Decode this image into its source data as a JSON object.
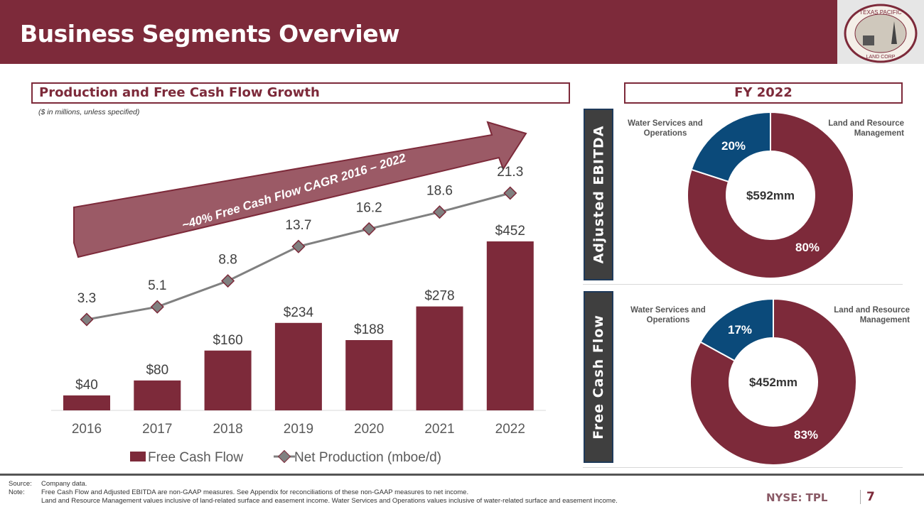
{
  "header": {
    "title": "Business Segments Overview",
    "logo_text": "TEXAS PACIFIC LAND CORP EST. 1888"
  },
  "left": {
    "section_title": "Production and Free Cash Flow Growth",
    "units_note": "($ in millions, unless specified)",
    "arrow_label": "~40% Free Cash Flow CAGR 2016 – 2022"
  },
  "chart_data": {
    "type": "bar+line",
    "categories": [
      "2016",
      "2017",
      "2018",
      "2019",
      "2020",
      "2021",
      "2022"
    ],
    "series": [
      {
        "name": "Free Cash Flow",
        "type": "bar",
        "values": [
          40,
          80,
          160,
          234,
          188,
          278,
          452
        ],
        "labels": [
          "$40",
          "$80",
          "$160",
          "$234",
          "$188",
          "$278",
          "$452"
        ],
        "color": "#7d2a3a"
      },
      {
        "name": "Net Production (mboe/d)",
        "type": "line",
        "values": [
          3.3,
          5.1,
          8.8,
          13.7,
          16.2,
          18.6,
          21.3
        ],
        "labels": [
          "3.3",
          "5.1",
          "8.8",
          "13.7",
          "16.2",
          "18.6",
          "21.3"
        ],
        "color": "#808080"
      }
    ],
    "legend": "bottom",
    "grid": false
  },
  "right": {
    "section_title": "FY 2022",
    "donuts": [
      {
        "label": "Adjusted EBITDA",
        "center": "$592mm",
        "segments": [
          {
            "name": "Land and Resource Management",
            "pct": 80,
            "label": "80%",
            "color": "#7d2a3a"
          },
          {
            "name": "Water Services and Operations",
            "pct": 20,
            "label": "20%",
            "color": "#0b4a7a"
          }
        ]
      },
      {
        "label": "Free Cash Flow",
        "center": "$452mm",
        "segments": [
          {
            "name": "Land and Resource Management",
            "pct": 83,
            "label": "83%",
            "color": "#7d2a3a"
          },
          {
            "name": "Water Services and Operations",
            "pct": 17,
            "label": "17%",
            "color": "#0b4a7a"
          }
        ]
      }
    ]
  },
  "footer": {
    "source_label": "Source:",
    "source": "Company data.",
    "note_label": "Note:",
    "note1": "Free Cash Flow and Adjusted EBITDA are non-GAAP measures.  See Appendix for reconciliations of these non-GAAP measures to net income.",
    "note2": "Land and Resource Management values inclusive of land-related surface and easement income. Water Services and Operations values inclusive of water-related surface and easement income.",
    "ticker": "NYSE: TPL",
    "page": "7"
  }
}
